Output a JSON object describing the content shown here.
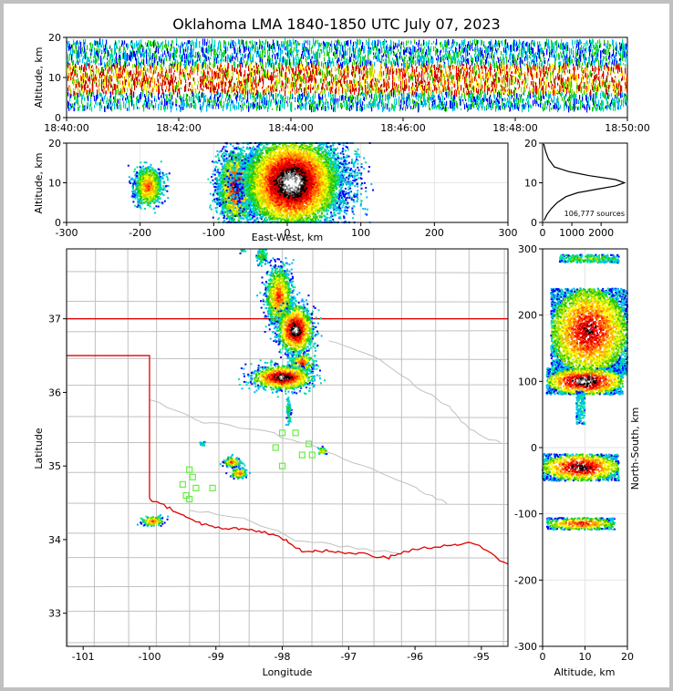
{
  "title": "Oklahoma LMA 1840-1850 UTC July 07, 2023",
  "colors": {
    "palette": [
      "#0000ff",
      "#00b4ff",
      "#00e0a0",
      "#22c800",
      "#a0e000",
      "#ffff00",
      "#ffb000",
      "#ff6000",
      "#ff0000",
      "#c00000",
      "#000000",
      "#808080",
      "#ffffff"
    ],
    "state_border": "#e00000",
    "county_lines": "#c0c0c0",
    "sensors": "#66ee44"
  },
  "chart_data": [
    {
      "type": "heatmap",
      "name": "time-altitude",
      "ylabel": "Altitude, km",
      "ylim": [
        0,
        20
      ],
      "yticks": [
        "0",
        "10",
        "20"
      ],
      "xticks": [
        "18:40:00",
        "18:42:00",
        "18:44:00",
        "18:46:00",
        "18:48:00",
        "18:50:00"
      ],
      "xlim_minutes": [
        0,
        10
      ],
      "band_altitude_km": [
        2,
        19
      ],
      "core_altitude_km": [
        6,
        13
      ]
    },
    {
      "type": "heatmap",
      "name": "east-west-altitude",
      "xlabel": "East-West, km",
      "ylabel": "Altitude, km",
      "xlim": [
        -300,
        300
      ],
      "ylim": [
        0,
        20
      ],
      "xticks": [
        "-300",
        "-200",
        "-100",
        "0",
        "100",
        "200",
        "300"
      ],
      "yticks": [
        "0",
        "10",
        "20"
      ],
      "clusters": [
        {
          "x": -190,
          "width": 30,
          "z": 9,
          "height": 9,
          "level": 7
        },
        {
          "x": -70,
          "width": 40,
          "z": 9,
          "height": 16,
          "level": 9
        },
        {
          "x": 5,
          "width": 110,
          "z": 10,
          "height": 20,
          "level": 12
        }
      ]
    },
    {
      "type": "line",
      "name": "altitude-histogram",
      "annotation": "106,777 sources",
      "xlim": [
        0,
        2900
      ],
      "ylim": [
        0,
        20
      ],
      "xticks": [
        "0",
        "1000",
        "2000"
      ],
      "yticks": [
        "0",
        "10",
        "20"
      ],
      "curve": [
        [
          50,
          0.5
        ],
        [
          150,
          2
        ],
        [
          300,
          3.5
        ],
        [
          500,
          5
        ],
        [
          800,
          6.5
        ],
        [
          1200,
          7.5
        ],
        [
          1800,
          8.3
        ],
        [
          2500,
          9.2
        ],
        [
          2800,
          10
        ],
        [
          2500,
          10.8
        ],
        [
          1600,
          11.8
        ],
        [
          900,
          12.8
        ],
        [
          400,
          14
        ],
        [
          200,
          16
        ],
        [
          100,
          18
        ],
        [
          40,
          19.8
        ]
      ]
    },
    {
      "type": "heatmap",
      "name": "plan-view",
      "xlabel": "Longitude",
      "ylabel": "Latitude",
      "xlim": [
        -101.25,
        -94.6
      ],
      "ylim": [
        32.55,
        37.95
      ],
      "xticks": [
        "-101",
        "-100",
        "-99",
        "-98",
        "-97",
        "-96",
        "-95"
      ],
      "yticks": [
        "33",
        "34",
        "35",
        "36",
        "37"
      ],
      "clusters": [
        {
          "lon": -98.3,
          "lat": 37.85,
          "w": 0.12,
          "h": 0.15,
          "level": 3
        },
        {
          "lon": -98.6,
          "lat": 37.95,
          "w": 0.05,
          "h": 0.1,
          "level": 2
        },
        {
          "lon": -98.05,
          "lat": 37.3,
          "w": 0.3,
          "h": 0.6,
          "level": 7
        },
        {
          "lon": -97.8,
          "lat": 36.85,
          "w": 0.4,
          "h": 0.5,
          "level": 11
        },
        {
          "lon": -97.7,
          "lat": 36.4,
          "w": 0.25,
          "h": 0.2,
          "level": 8
        },
        {
          "lon": -98.0,
          "lat": 36.2,
          "w": 0.7,
          "h": 0.25,
          "level": 11
        },
        {
          "lon": -97.9,
          "lat": 35.75,
          "w": 0.05,
          "h": 0.3,
          "level": 2
        },
        {
          "lon": -98.75,
          "lat": 35.05,
          "w": 0.2,
          "h": 0.1,
          "level": 7
        },
        {
          "lon": -98.65,
          "lat": 34.9,
          "w": 0.2,
          "h": 0.1,
          "level": 7
        },
        {
          "lon": -97.4,
          "lat": 35.2,
          "w": 0.1,
          "h": 0.08,
          "level": 5
        },
        {
          "lon": -99.95,
          "lat": 34.25,
          "w": 0.25,
          "h": 0.1,
          "level": 7
        },
        {
          "lon": -99.2,
          "lat": 35.3,
          "w": 0.05,
          "h": 0.05,
          "level": 1
        }
      ],
      "sensors": [
        [
          -98.0,
          35.45
        ],
        [
          -97.8,
          35.45
        ],
        [
          -98.1,
          35.25
        ],
        [
          -98.0,
          35.0
        ],
        [
          -97.7,
          35.15
        ],
        [
          -97.6,
          35.3
        ],
        [
          -97.55,
          35.15
        ],
        [
          -99.4,
          34.95
        ],
        [
          -99.35,
          34.85
        ],
        [
          -99.3,
          34.7
        ],
        [
          -99.5,
          34.75
        ],
        [
          -99.45,
          34.6
        ],
        [
          -99.4,
          34.55
        ],
        [
          -99.05,
          34.7
        ]
      ]
    },
    {
      "type": "heatmap",
      "name": "north-south-altitude",
      "xlabel": "Altitude, km",
      "ylabel": "North-South, km",
      "xlim": [
        0,
        20
      ],
      "ylim": [
        -300,
        300
      ],
      "xticks": [
        "0",
        "10",
        "20"
      ],
      "yticks": [
        "-300",
        "-200",
        "-100",
        "0",
        "100",
        "200",
        "300"
      ],
      "clusters": [
        {
          "z": 11,
          "ns": 285,
          "width": 14,
          "height": 12,
          "level": 3
        },
        {
          "z": 11,
          "ns": 175,
          "width": 18,
          "height": 130,
          "level": 9
        },
        {
          "z": 10,
          "ns": 100,
          "width": 18,
          "height": 40,
          "level": 11
        },
        {
          "z": 9,
          "ns": 60,
          "width": 2,
          "height": 50,
          "level": 1
        },
        {
          "z": 9,
          "ns": -30,
          "width": 18,
          "height": 40,
          "level": 10
        },
        {
          "z": 9,
          "ns": -115,
          "width": 16,
          "height": 18,
          "level": 8
        }
      ]
    }
  ]
}
